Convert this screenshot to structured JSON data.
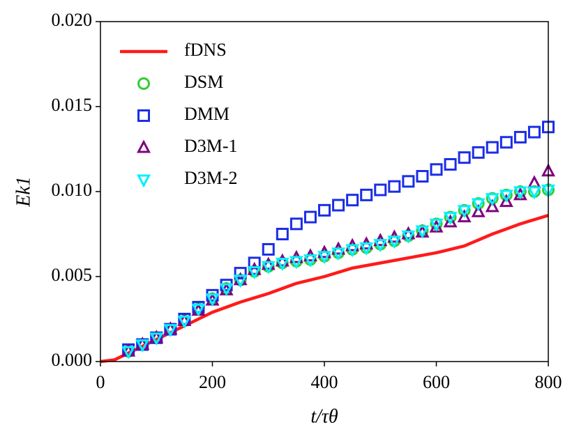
{
  "chart_data": {
    "type": "line",
    "xlabel": "t/τθ",
    "ylabel": "Ek1",
    "xlim": [
      0,
      800
    ],
    "xticks": [
      0,
      200,
      400,
      600,
      800
    ],
    "ylim": [
      0,
      0.02
    ],
    "yticks": [
      {
        "value": 0,
        "label": "0.000"
      },
      {
        "value": 0.005,
        "label": "0.005"
      },
      {
        "value": 0.01,
        "label": "0.010"
      },
      {
        "value": 0.015,
        "label": "0.015"
      },
      {
        "value": 0.02,
        "label": "0.020"
      }
    ],
    "legend": "upper left",
    "series": [
      {
        "name": "fDNS",
        "color": "#ff1a1a",
        "marker": "line",
        "x": [
          0,
          25,
          50,
          100,
          150,
          200,
          250,
          300,
          350,
          400,
          450,
          500,
          550,
          600,
          650,
          700,
          750,
          800
        ],
        "values": [
          0,
          0.0001,
          0.0005,
          0.0013,
          0.0021,
          0.0029,
          0.0035,
          0.004,
          0.0046,
          0.005,
          0.0055,
          0.0058,
          0.0061,
          0.0064,
          0.0068,
          0.0075,
          0.0081,
          0.0086
        ]
      },
      {
        "name": "DSM",
        "color": "#33cc33",
        "marker": "circle",
        "x": [
          50,
          75,
          100,
          125,
          150,
          175,
          200,
          225,
          250,
          275,
          300,
          325,
          350,
          375,
          400,
          425,
          450,
          475,
          500,
          525,
          550,
          575,
          600,
          625,
          650,
          675,
          700,
          725,
          750,
          775,
          800
        ],
        "values": [
          0.0006,
          0.001,
          0.0014,
          0.0019,
          0.0024,
          0.0031,
          0.0037,
          0.0043,
          0.0048,
          0.0053,
          0.0056,
          0.0058,
          0.0059,
          0.006,
          0.0062,
          0.0064,
          0.0066,
          0.0067,
          0.0069,
          0.0071,
          0.0074,
          0.0077,
          0.0081,
          0.0085,
          0.0089,
          0.0093,
          0.0096,
          0.0098,
          0.01,
          0.01,
          0.0101
        ]
      },
      {
        "name": "DMM",
        "color": "#1a2ee6",
        "marker": "square",
        "x": [
          50,
          75,
          100,
          125,
          150,
          175,
          200,
          225,
          250,
          275,
          300,
          325,
          350,
          375,
          400,
          425,
          450,
          475,
          500,
          525,
          550,
          575,
          600,
          625,
          650,
          675,
          700,
          725,
          750,
          775,
          800
        ],
        "values": [
          0.0007,
          0.001,
          0.0014,
          0.0019,
          0.0025,
          0.0032,
          0.0039,
          0.0045,
          0.0052,
          0.0058,
          0.0066,
          0.0075,
          0.0081,
          0.0085,
          0.0089,
          0.0092,
          0.0095,
          0.0098,
          0.0101,
          0.0103,
          0.0106,
          0.0109,
          0.0113,
          0.0116,
          0.012,
          0.0123,
          0.0126,
          0.0129,
          0.0132,
          0.0135,
          0.0138
        ]
      },
      {
        "name": "D3M-1",
        "color": "#800080",
        "marker": "triangle-up",
        "x": [
          50,
          75,
          100,
          125,
          150,
          175,
          200,
          225,
          250,
          275,
          300,
          325,
          350,
          375,
          400,
          425,
          450,
          475,
          500,
          525,
          550,
          575,
          600,
          625,
          650,
          675,
          700,
          725,
          750,
          775,
          800
        ],
        "values": [
          0.0006,
          0.001,
          0.0014,
          0.0019,
          0.0024,
          0.003,
          0.0036,
          0.0042,
          0.0048,
          0.0054,
          0.0057,
          0.0059,
          0.0061,
          0.0062,
          0.0064,
          0.0066,
          0.0068,
          0.0069,
          0.0071,
          0.0073,
          0.0075,
          0.0076,
          0.0079,
          0.0082,
          0.0085,
          0.0088,
          0.0091,
          0.0094,
          0.0098,
          0.0105,
          0.0112
        ]
      },
      {
        "name": "D3M-2",
        "color": "#00f0ff",
        "marker": "triangle-down",
        "x": [
          50,
          75,
          100,
          125,
          150,
          175,
          200,
          225,
          250,
          275,
          300,
          325,
          350,
          375,
          400,
          425,
          450,
          475,
          500,
          525,
          550,
          575,
          600,
          625,
          650,
          675,
          700,
          725,
          750,
          775,
          800
        ],
        "values": [
          0.0006,
          0.001,
          0.0014,
          0.0019,
          0.0024,
          0.0031,
          0.0037,
          0.0043,
          0.0048,
          0.0053,
          0.0056,
          0.0058,
          0.0059,
          0.006,
          0.0062,
          0.0064,
          0.0066,
          0.0067,
          0.0069,
          0.0071,
          0.0074,
          0.0077,
          0.0081,
          0.0085,
          0.0089,
          0.0093,
          0.0096,
          0.0098,
          0.01,
          0.01,
          0.0101
        ]
      }
    ]
  }
}
